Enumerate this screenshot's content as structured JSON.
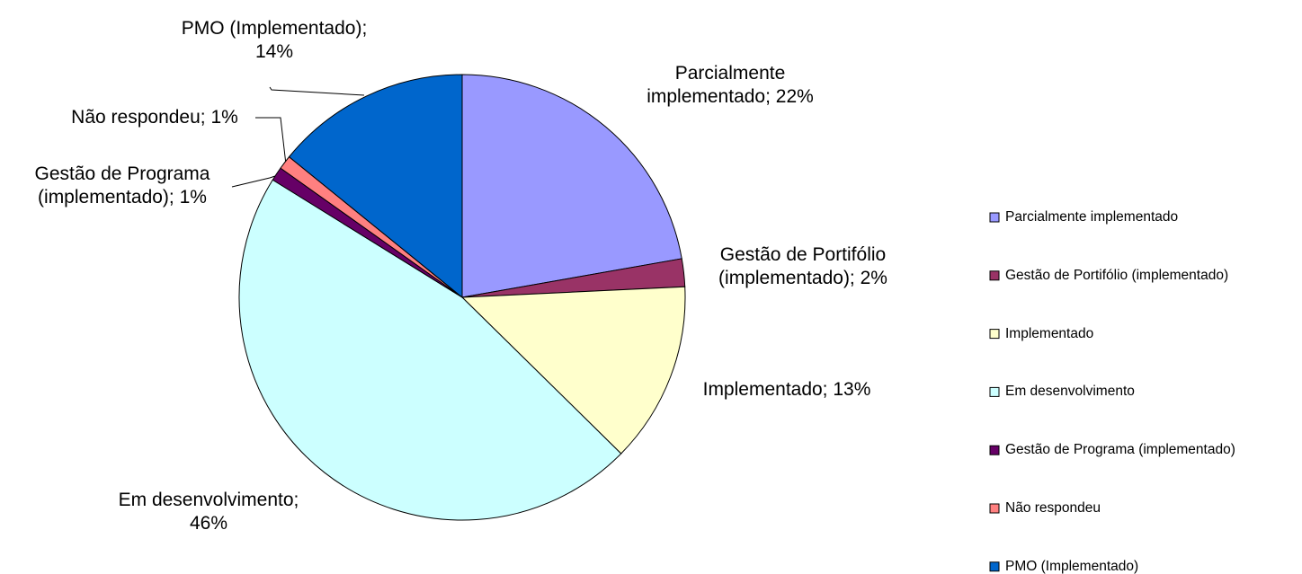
{
  "chart_data": {
    "type": "pie",
    "categories": [
      "Parcialmente implementado",
      "Gestão de Portifólio (implementado)",
      "Implementado",
      "Em desenvolvimento",
      "Gestão de Programa (implementado)",
      "Não respondeu",
      "PMO (Implementado)"
    ],
    "values": [
      22,
      2,
      13,
      46,
      1,
      1,
      14
    ],
    "value_labels": [
      "Parcialmente\nimplementado; 22%",
      "Gestão de Portifólio\n(implementado); 2%",
      "Implementado; 13%",
      "Em desenvolvimento;\n46%",
      "Gestão de Programa\n(implementado); 1%",
      "Não respondeu; 1%",
      "PMO (Implementado);\n14%"
    ],
    "colors": [
      "#9999ff",
      "#993366",
      "#ffffcc",
      "#ccffff",
      "#660066",
      "#ff8080",
      "#0066cc"
    ],
    "legend": "right"
  }
}
